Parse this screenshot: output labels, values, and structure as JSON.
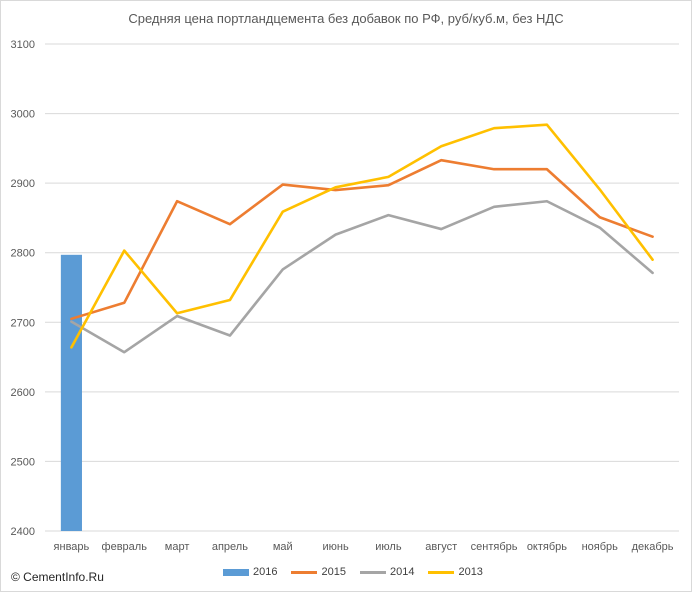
{
  "colors": {
    "2016": "#5b9bd5",
    "2015": "#ed7d31",
    "2014": "#a5a5a5",
    "2013": "#ffc000",
    "grid": "#d9d9d9",
    "text": "#595959"
  },
  "chart_data": {
    "type": "line",
    "title": "Средняя цена портландцемента  без добавок по РФ, руб/куб.м, без НДС",
    "categories": [
      "январь",
      "февраль",
      "март",
      "апрель",
      "май",
      "июнь",
      "июль",
      "август",
      "сентябрь",
      "октябрь",
      "ноябрь",
      "декабрь"
    ],
    "ylim": [
      2400,
      3100
    ],
    "yticks": [
      2400,
      2500,
      2600,
      2700,
      2800,
      2900,
      3000,
      3100
    ],
    "grid": true,
    "legend_position": "bottom",
    "series": [
      {
        "name": "2016",
        "kind": "bar",
        "values": [
          2797,
          null,
          null,
          null,
          null,
          null,
          null,
          null,
          null,
          null,
          null,
          null
        ]
      },
      {
        "name": "2015",
        "kind": "line",
        "values": [
          2705,
          2728,
          2874,
          2841,
          2898,
          2890,
          2897,
          2933,
          2920,
          2920,
          2851,
          2823
        ]
      },
      {
        "name": "2014",
        "kind": "line",
        "values": [
          2701,
          2657,
          2709,
          2681,
          2776,
          2826,
          2854,
          2834,
          2866,
          2874,
          2836,
          2771
        ]
      },
      {
        "name": "2013",
        "kind": "line",
        "values": [
          2664,
          2803,
          2713,
          2732,
          2859,
          2894,
          2909,
          2953,
          2979,
          2984,
          2891,
          2790
        ]
      }
    ]
  },
  "copyright": "© CementInfo.Ru"
}
